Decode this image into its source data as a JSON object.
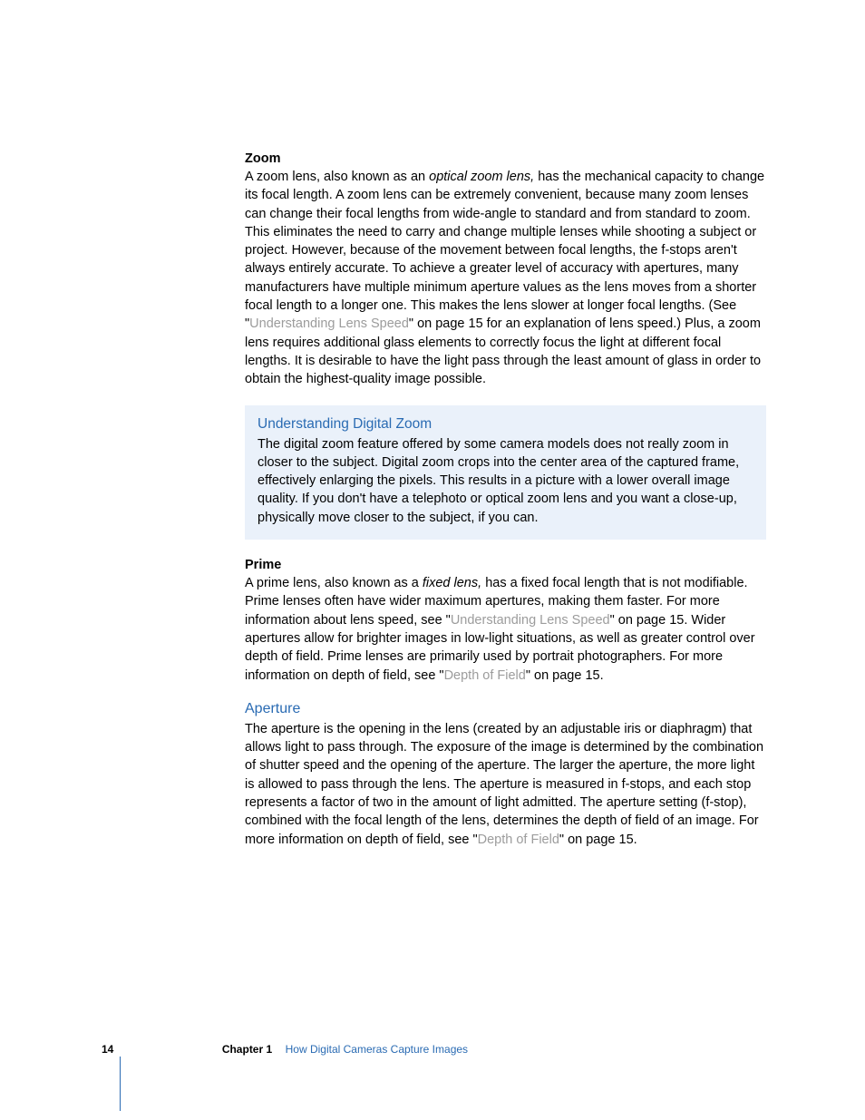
{
  "sections": {
    "zoom": {
      "heading": "Zoom",
      "para_parts": [
        "A zoom lens, also known as an ",
        "optical zoom lens, ",
        "has the mechanical capacity to change its focal length. A zoom lens can be extremely convenient, because many zoom lenses can change their focal lengths from wide-angle to standard and from standard to zoom. This eliminates the need to carry and change multiple lenses while shooting a subject or project. However, because of the movement between focal lengths, the f-stops aren't always entirely accurate. To achieve a greater level of accuracy with apertures, many manufacturers have multiple minimum aperture values as the lens moves from a shorter focal length to a longer one. This makes the lens slower at longer focal lengths. (See \"",
        "Understanding Lens Speed",
        "\" on page 15 for an explanation of lens speed.) Plus, a zoom lens requires additional glass elements to correctly focus the light at different focal lengths. It is desirable to have the light pass through the least amount of glass in order to obtain the highest-quality image possible."
      ]
    },
    "callout": {
      "title": "Understanding Digital Zoom",
      "body": "The digital zoom feature offered by some camera models does not really zoom in closer to the subject. Digital zoom crops into the center area of the captured frame, effectively enlarging the pixels. This results in a picture with a lower overall image quality. If you don't have a telephoto or optical zoom lens and you want a close-up, physically move closer to the subject, if you can."
    },
    "prime": {
      "heading": "Prime",
      "para_parts": [
        "A prime lens, also known as a ",
        "fixed lens, ",
        "has a fixed focal length that is not modifiable. Prime lenses often have wider maximum apertures, making them faster. For more information about lens speed, see \"",
        "Understanding Lens Speed",
        "\" on page 15. Wider apertures allow for brighter images in low-light situations, as well as greater control over depth of field. Prime lenses are primarily used by portrait photographers. For more information on depth of field, see \"",
        "Depth of Field",
        "\" on page 15."
      ]
    },
    "aperture": {
      "title": "Aperture",
      "para_parts": [
        "The aperture is the opening in the lens (created by an adjustable iris or diaphragm) that allows light to pass through. The exposure of the image is determined by the combination of shutter speed and the opening of the aperture. The larger the aperture, the more light is allowed to pass through the lens. The aperture is measured in f-stops, and each stop represents a factor of two in the amount of light admitted. The aperture setting (f-stop), combined with the focal length of the lens, determines the depth of field of an image. For more information on depth of field, see \"",
        "Depth of Field",
        "\" on page 15."
      ]
    }
  },
  "footer": {
    "page_number": "14",
    "chapter_label": "Chapter 1",
    "chapter_title": "How Digital Cameras Capture Images"
  }
}
